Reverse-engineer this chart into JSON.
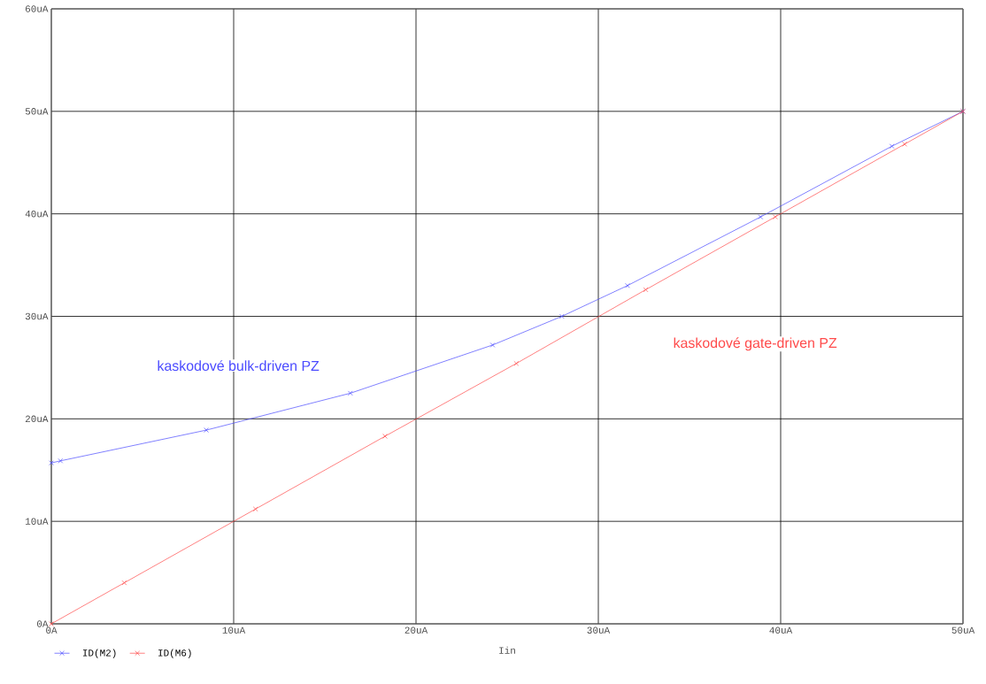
{
  "chart_data": {
    "type": "line",
    "xlabel": "Iin",
    "xlim": [
      0,
      50
    ],
    "ylim": [
      0,
      60
    ],
    "xticks": [
      {
        "value": 0,
        "label": "0A"
      },
      {
        "value": 10,
        "label": "10uA"
      },
      {
        "value": 20,
        "label": "20uA"
      },
      {
        "value": 30,
        "label": "30uA"
      },
      {
        "value": 40,
        "label": "40uA"
      },
      {
        "value": 50,
        "label": "50uA"
      }
    ],
    "yticks": [
      {
        "value": 0,
        "label": "0A"
      },
      {
        "value": 10,
        "label": "10uA"
      },
      {
        "value": 20,
        "label": "20uA"
      },
      {
        "value": 30,
        "label": "30uA"
      },
      {
        "value": 40,
        "label": "40uA"
      },
      {
        "value": 50,
        "label": "50uA"
      },
      {
        "value": 60,
        "label": "60uA"
      }
    ],
    "series": [
      {
        "name": "ID(M2)",
        "color": "#4a4aff",
        "x": [
          0,
          0.5,
          8.5,
          16.4,
          24.2,
          28.0,
          31.6,
          38.9,
          46.1,
          50
        ],
        "values": [
          15.7,
          15.9,
          18.9,
          22.5,
          27.2,
          30,
          33.0,
          39.7,
          46.6,
          50
        ]
      },
      {
        "name": "ID(M6)",
        "color": "#ff4a4a",
        "x": [
          0,
          4.0,
          11.2,
          18.3,
          25.5,
          32.6,
          39.7,
          46.8,
          50
        ],
        "values": [
          0,
          4.0,
          11.2,
          18.3,
          25.4,
          32.6,
          39.7,
          46.8,
          50
        ]
      }
    ],
    "annotations": [
      "kaskodové bulk-driven PZ",
      "kaskodové gate-driven PZ"
    ],
    "grid": true,
    "legend": "bottom left",
    "marker": "cross",
    "line_style": "solid"
  }
}
